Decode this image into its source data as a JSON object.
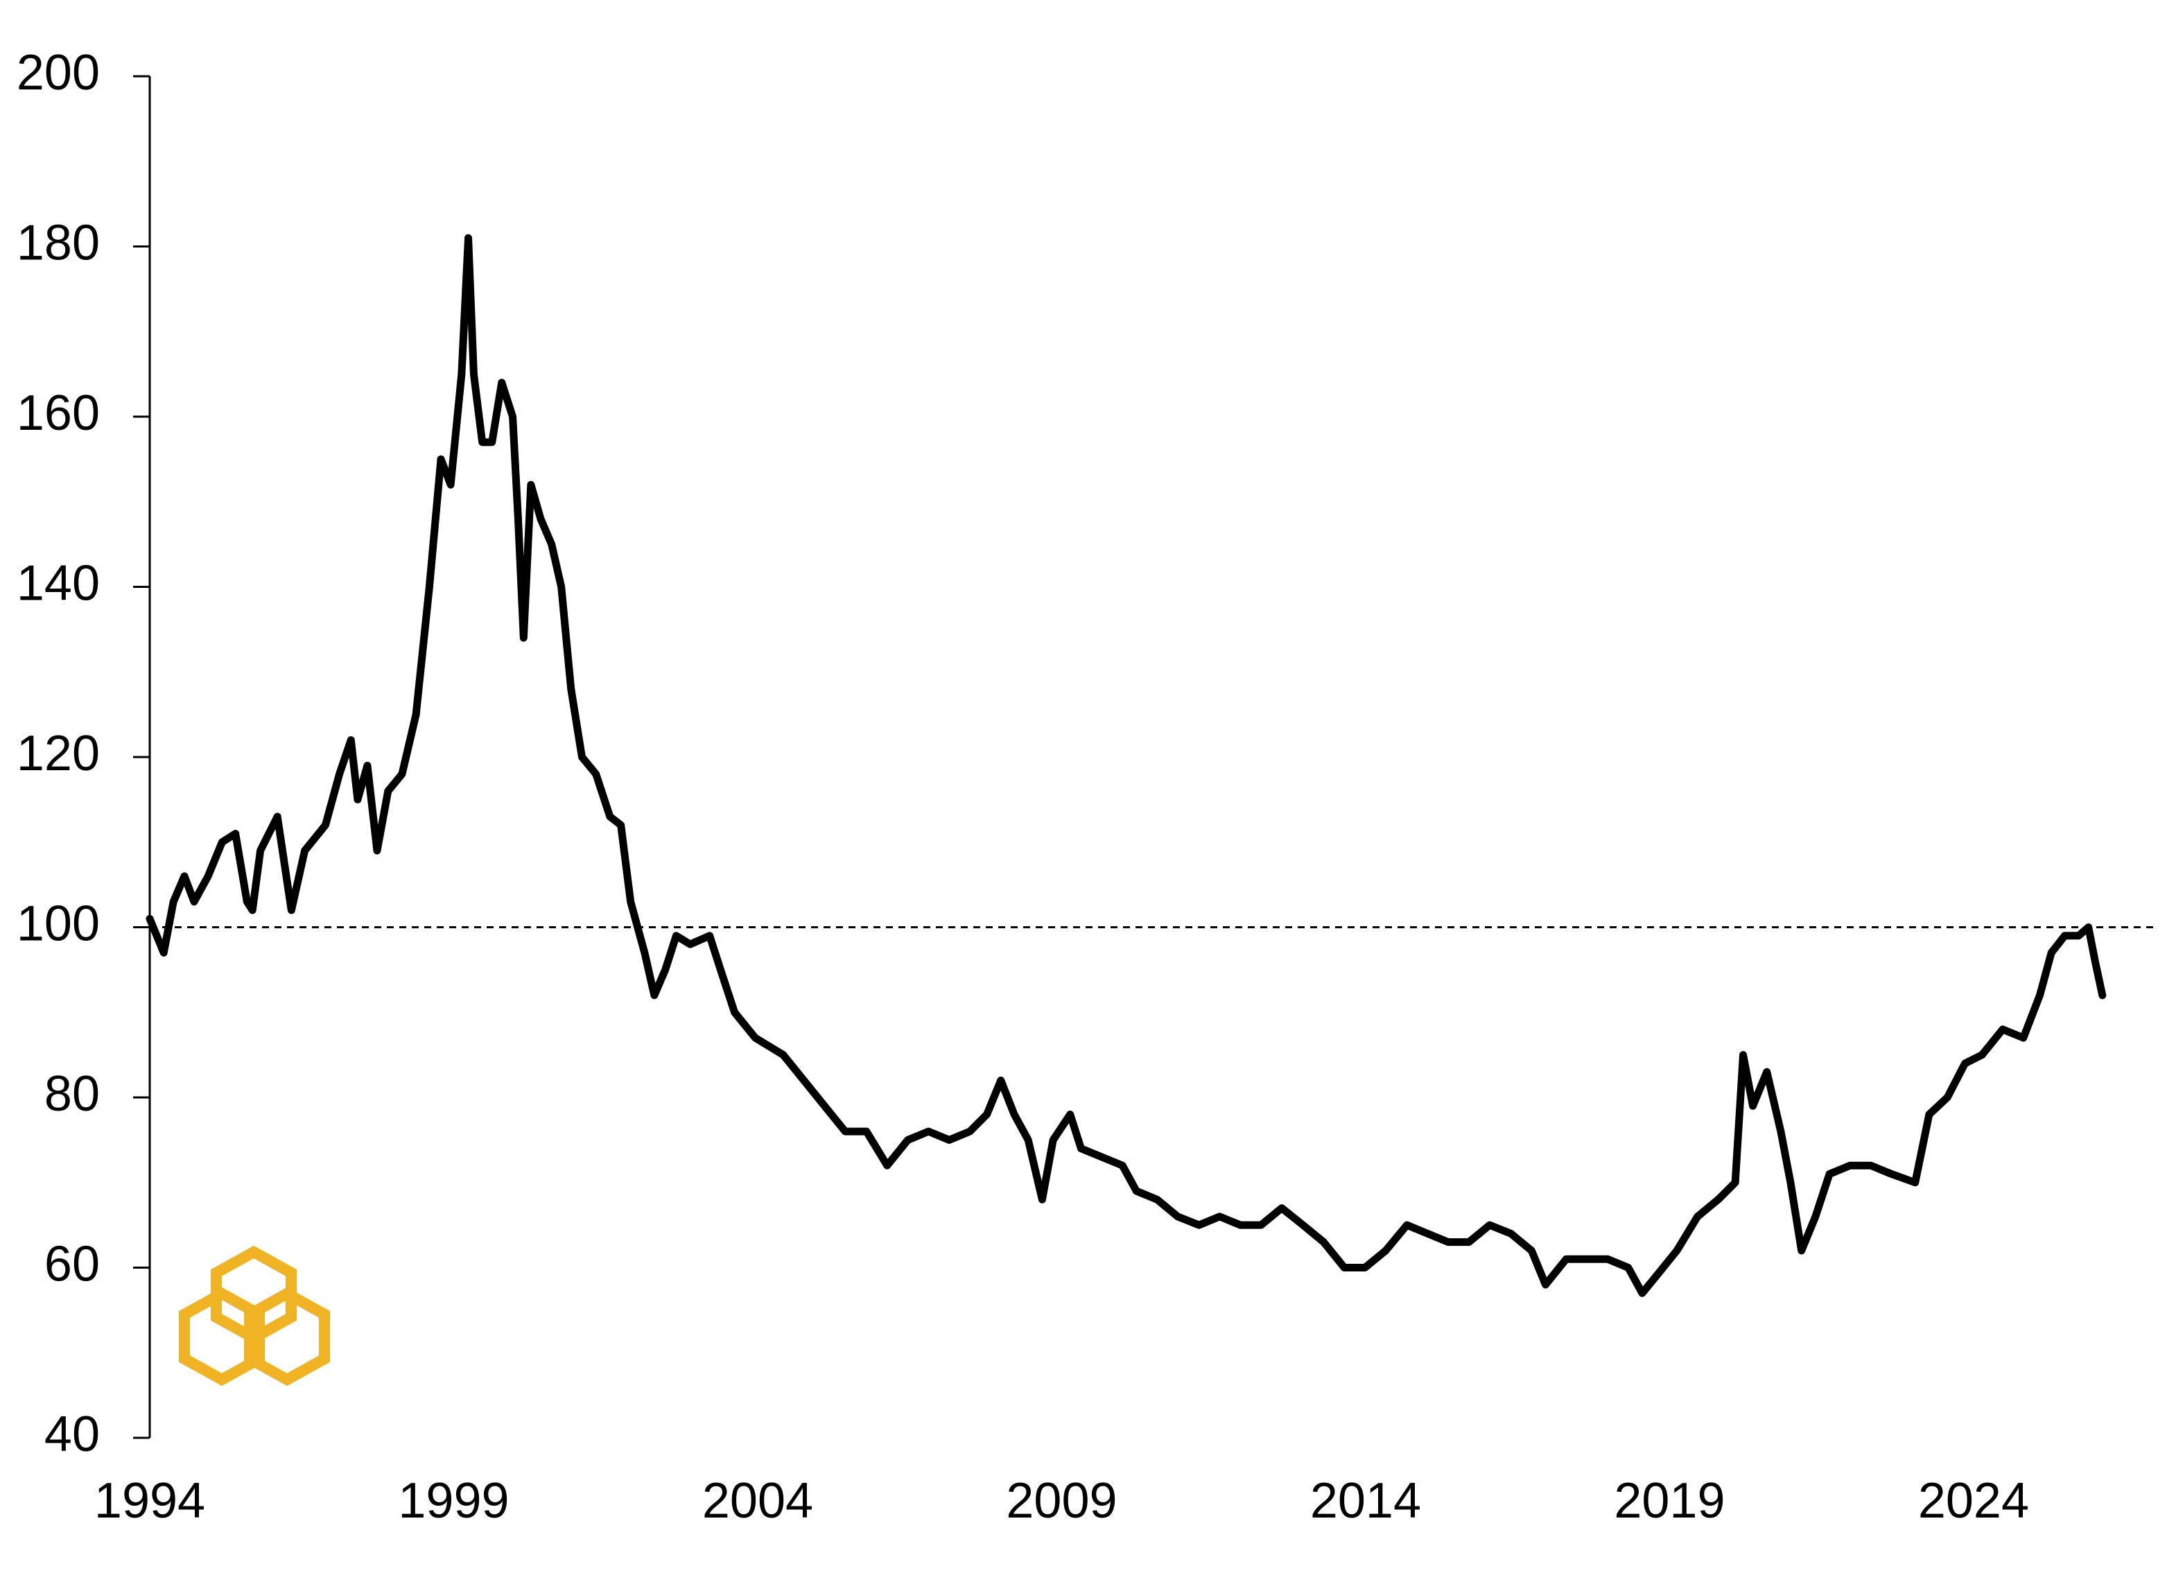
{
  "chart_data": {
    "type": "line",
    "x": [
      1994.0,
      1994.23,
      1994.39,
      1994.57,
      1994.73,
      1994.96,
      1995.19,
      1995.41,
      1995.6,
      1995.69,
      1995.82,
      1996.1,
      1996.33,
      1996.55,
      1996.89,
      1997.12,
      1997.31,
      1997.42,
      1997.58,
      1997.74,
      1997.92,
      1998.15,
      1998.38,
      1998.6,
      1998.79,
      1998.95,
      1999.13,
      1999.24,
      1999.33,
      1999.47,
      1999.63,
      1999.79,
      1999.97,
      2000.06,
      2000.15,
      2000.27,
      2000.43,
      2000.61,
      2000.77,
      2000.93,
      2001.11,
      2001.34,
      2001.57,
      2001.75,
      2001.91,
      2002.14,
      2002.3,
      2002.48,
      2002.66,
      2002.89,
      2003.21,
      2003.39,
      2003.62,
      2003.96,
      2004.42,
      2004.76,
      2005.1,
      2005.44,
      2005.79,
      2006.13,
      2006.47,
      2006.81,
      2007.15,
      2007.49,
      2007.77,
      2008.0,
      2008.22,
      2008.45,
      2008.68,
      2008.86,
      2009.14,
      2009.32,
      2009.66,
      2010.0,
      2010.23,
      2010.57,
      2010.91,
      2011.26,
      2011.6,
      2011.94,
      2012.28,
      2012.62,
      2012.97,
      2013.31,
      2013.65,
      2013.99,
      2014.33,
      2014.68,
      2015.02,
      2015.36,
      2015.7,
      2016.04,
      2016.39,
      2016.73,
      2016.96,
      2017.3,
      2017.64,
      2017.98,
      2018.32,
      2018.55,
      2018.78,
      2019.12,
      2019.46,
      2019.8,
      2020.08,
      2020.21,
      2020.37,
      2020.6,
      2020.83,
      2020.99,
      2021.17,
      2021.4,
      2021.63,
      2021.97,
      2022.31,
      2022.65,
      2023.04,
      2023.27,
      2023.57,
      2023.86,
      2024.14,
      2024.48,
      2024.82,
      2025.09,
      2025.28,
      2025.5,
      2025.73,
      2025.89,
      2026.0,
      2026.12
    ],
    "series": [
      {
        "color": "#000000",
        "values": [
          101,
          97,
          103,
          106,
          103,
          106,
          110,
          111,
          103,
          102,
          109,
          113,
          102,
          109,
          112,
          118,
          122,
          115,
          119,
          109,
          116,
          118,
          125,
          140,
          155,
          152,
          165,
          181,
          165,
          157,
          157,
          164,
          160,
          148,
          134,
          152,
          148,
          145,
          140,
          128,
          120,
          118,
          113,
          112,
          103,
          97,
          92,
          95,
          99,
          98,
          99,
          95,
          90,
          87,
          85,
          82,
          79,
          76,
          76,
          72,
          75,
          76,
          75,
          76,
          78,
          82,
          78,
          75,
          68,
          75,
          78,
          74,
          73,
          72,
          69,
          68,
          66,
          65,
          66,
          65,
          65,
          67,
          65,
          63,
          60,
          60,
          62,
          65,
          64,
          63,
          63,
          65,
          64,
          62,
          58,
          61,
          61,
          61,
          60,
          57,
          59,
          62,
          66,
          68,
          70,
          85,
          79,
          83,
          76,
          70,
          62,
          66,
          71,
          72,
          72,
          71,
          70,
          78,
          80,
          84,
          85,
          88,
          87,
          92,
          97,
          99,
          99,
          100,
          96,
          92
        ]
      }
    ],
    "xlim": [
      1994,
      2027
    ],
    "xticks": [
      1994,
      1999,
      2004,
      2009,
      2014,
      2019,
      2024
    ],
    "ylim": [
      40,
      200
    ],
    "yticks": [
      40,
      60,
      80,
      100,
      120,
      140,
      160,
      180,
      200
    ],
    "reference_line": 100
  }
}
